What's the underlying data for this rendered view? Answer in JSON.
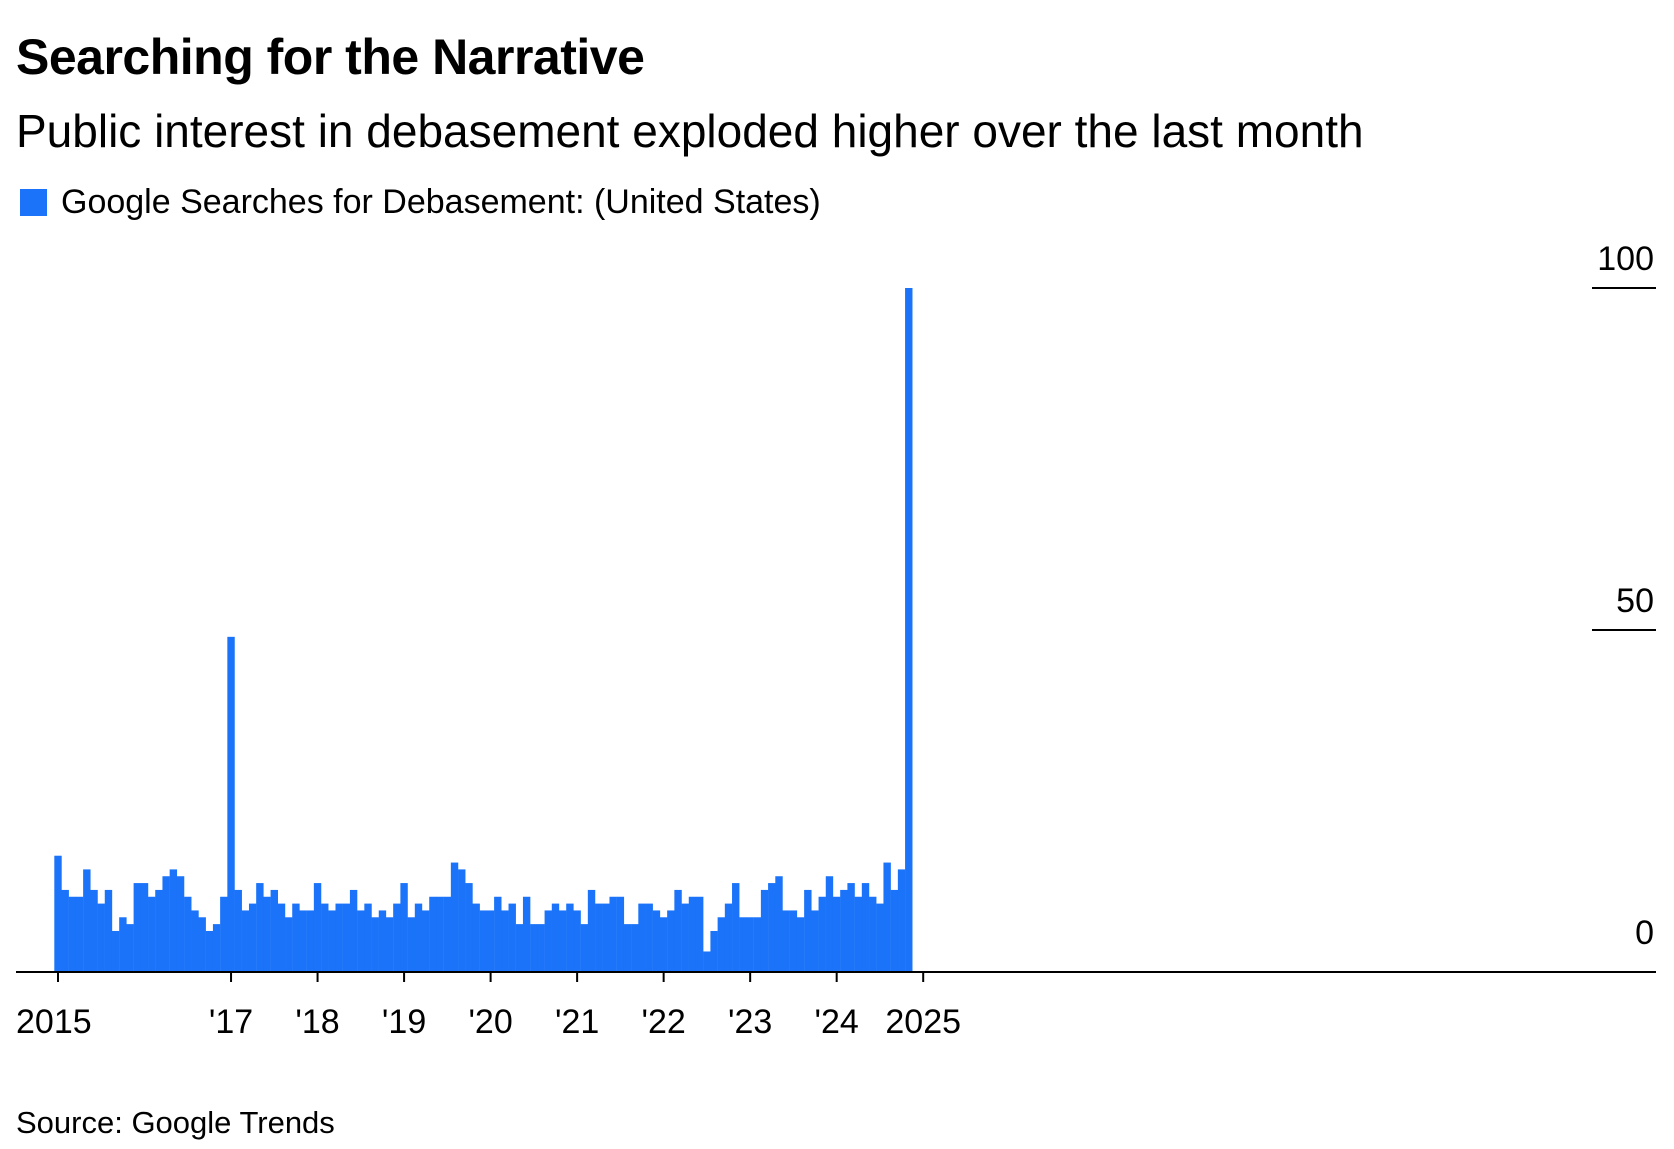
{
  "title": "Searching for the Narrative",
  "subtitle": "Public interest in debasement exploded higher over the last month",
  "legend": {
    "label": "Google Searches for Debasement: (United States)",
    "color": "#1a73f8"
  },
  "source": "Source: Google Trends",
  "chart_data": {
    "type": "bar",
    "title": "Searching for the Narrative",
    "subtitle": "Public interest in debasement exploded higher over the last month",
    "xlabel": "",
    "ylabel": "",
    "ylim": [
      0,
      100
    ],
    "y_ticks": [
      {
        "value": 0,
        "label": "0"
      },
      {
        "value": 50,
        "label": "50"
      },
      {
        "value": 100,
        "label": "100"
      }
    ],
    "x_start": "2015-01",
    "x_ticks": [
      {
        "index": 0,
        "label": "2015"
      },
      {
        "index": 24,
        "label": "'17"
      },
      {
        "index": 36,
        "label": "'18"
      },
      {
        "index": 48,
        "label": "'19"
      },
      {
        "index": 60,
        "label": "'20"
      },
      {
        "index": 72,
        "label": "'21"
      },
      {
        "index": 84,
        "label": "'22"
      },
      {
        "index": 96,
        "label": "'23"
      },
      {
        "index": 108,
        "label": "'24"
      },
      {
        "index": 120,
        "label": "2025"
      }
    ],
    "series": [
      {
        "name": "Google Searches for Debasement: (United States)",
        "color": "#1a73f8",
        "values": [
          17,
          12,
          11,
          11,
          15,
          12,
          10,
          12,
          6,
          8,
          7,
          13,
          13,
          11,
          12,
          14,
          15,
          14,
          11,
          9,
          8,
          6,
          7,
          11,
          49,
          12,
          9,
          10,
          13,
          11,
          12,
          10,
          8,
          10,
          9,
          9,
          13,
          10,
          9,
          10,
          10,
          12,
          9,
          10,
          8,
          9,
          8,
          10,
          13,
          8,
          10,
          9,
          11,
          11,
          11,
          16,
          15,
          13,
          10,
          9,
          9,
          11,
          9,
          10,
          7,
          11,
          7,
          7,
          9,
          10,
          9,
          10,
          9,
          7,
          12,
          10,
          10,
          11,
          11,
          7,
          7,
          10,
          10,
          9,
          8,
          9,
          12,
          10,
          11,
          11,
          3,
          6,
          8,
          10,
          13,
          8,
          8,
          8,
          12,
          13,
          14,
          9,
          9,
          8,
          12,
          9,
          11,
          14,
          11,
          12,
          13,
          11,
          13,
          11,
          10,
          16,
          12,
          15,
          100
        ]
      }
    ]
  }
}
